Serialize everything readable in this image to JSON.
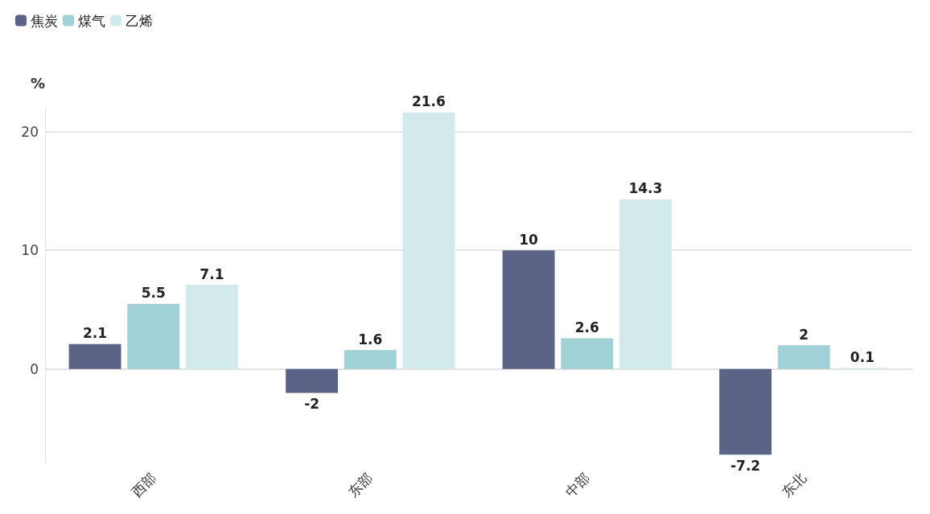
{
  "chart_data": {
    "type": "bar",
    "ylabel": "%",
    "categories": [
      "西部",
      "东部",
      "中部",
      "东北"
    ],
    "series": [
      {
        "name": "焦炭",
        "color": "#5b6386",
        "values": [
          2.1,
          -2,
          10,
          -7.2
        ]
      },
      {
        "name": "煤气",
        "color": "#9fd1d6",
        "values": [
          5.5,
          1.6,
          2.6,
          2
        ]
      },
      {
        "name": "乙烯",
        "color": "#d2eaec",
        "values": [
          7.1,
          21.6,
          14.3,
          0.1
        ]
      }
    ],
    "ylim": [
      -8,
      22
    ],
    "yticks": [
      0,
      10,
      20
    ],
    "grid": "y",
    "legend": "top left",
    "data_labels": true
  }
}
